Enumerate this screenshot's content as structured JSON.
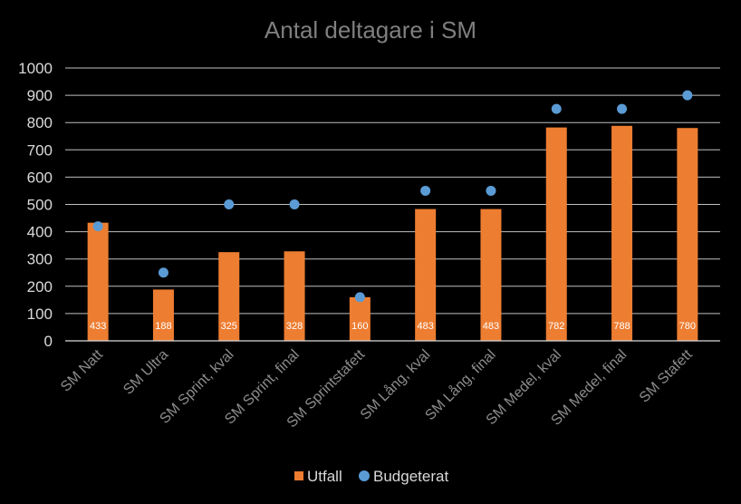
{
  "chart_data": {
    "type": "bar",
    "title": "Antal deltagare i SM",
    "xlabel": "",
    "ylabel": "",
    "ylim": [
      0,
      1000
    ],
    "yticks": [
      0,
      100,
      200,
      300,
      400,
      500,
      600,
      700,
      800,
      900,
      1000
    ],
    "grid": true,
    "legend_position": "bottom",
    "categories": [
      "SM Natt",
      "SM Ultra",
      "SM Sprint, kval",
      "SM Sprint, final",
      "SM Sprintstafett",
      "SM Lång, kval",
      "SM Lång, final",
      "SM Medel, kval",
      "SM Medel, final",
      "SM Stafett"
    ],
    "series": [
      {
        "name": "Utfall",
        "kind": "bar",
        "color": "#ed7d31",
        "values": [
          433,
          188,
          325,
          328,
          160,
          483,
          483,
          782,
          788,
          780
        ],
        "data_labels": [
          "433",
          "188",
          "325",
          "328",
          "160",
          "483",
          "483",
          "782",
          "788",
          "780"
        ]
      },
      {
        "name": "Budgeterat",
        "kind": "marker",
        "color": "#5b9bd5",
        "values": [
          420,
          250,
          500,
          500,
          160,
          550,
          550,
          850,
          850,
          900
        ]
      }
    ]
  }
}
